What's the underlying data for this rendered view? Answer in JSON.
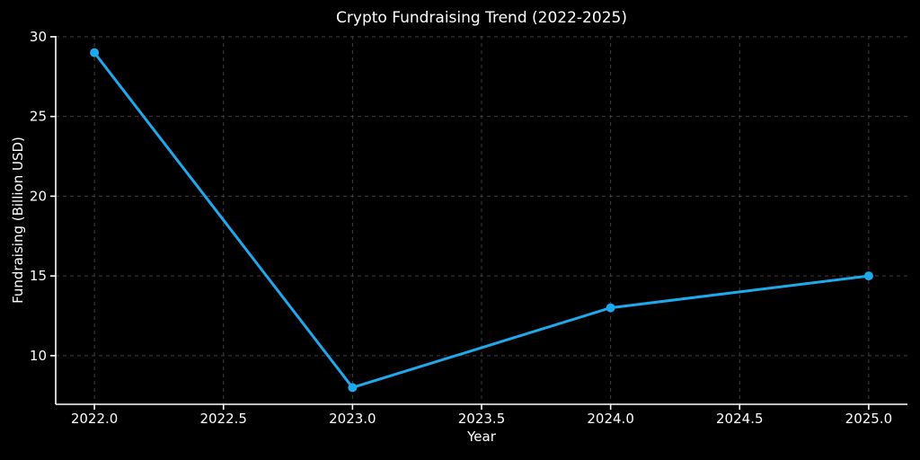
{
  "page": {
    "background": "#000000"
  },
  "chart_data": {
    "type": "line",
    "title": "Crypto Fundraising Trend (2022-2025)",
    "xlabel": "Year",
    "ylabel": "Fundraising (Billion USD)",
    "x": [
      2022,
      2023,
      2024,
      2025
    ],
    "series": [
      {
        "name": "Fundraising",
        "values": [
          29,
          8,
          13,
          15
        ]
      }
    ],
    "xlim": [
      2021.85,
      2025.15
    ],
    "ylim": [
      6.95,
      30.05
    ],
    "xticks": {
      "values": [
        2022.0,
        2022.5,
        2023.0,
        2023.5,
        2024.0,
        2024.5,
        2025.0
      ],
      "labels": [
        "2022.0",
        "2022.5",
        "2023.0",
        "2023.5",
        "2024.0",
        "2024.5",
        "2025.0"
      ]
    },
    "yticks": {
      "values": [
        10,
        15,
        20,
        25,
        30
      ],
      "labels": [
        "10",
        "15",
        "20",
        "25",
        "30"
      ]
    },
    "grid": "on",
    "legend": "none",
    "colors": {
      "background": "#000000",
      "text": "#ffffff",
      "line": "#1ea9ec",
      "marker": "#1ea9ec",
      "grid": "#3f3f3f",
      "spine": "#ffffff",
      "tick": "#ffffff"
    }
  }
}
